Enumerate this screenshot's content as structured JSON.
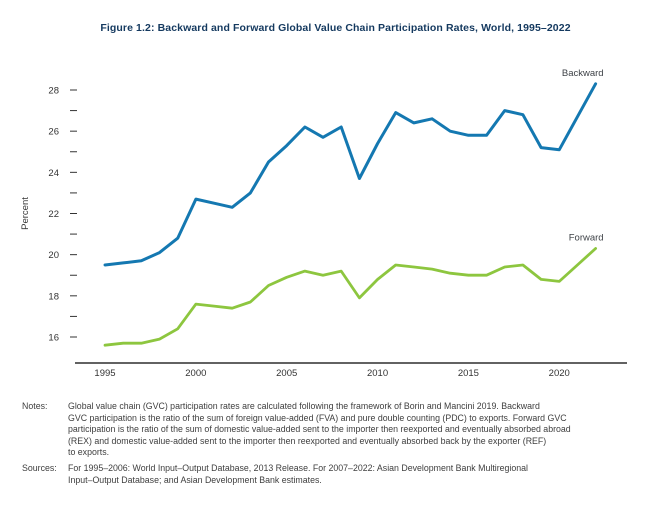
{
  "figure": {
    "title": "Figure 1.2: Backward and Forward Global Value Chain Participation Rates, World, 1995–2022"
  },
  "chart_data": {
    "type": "line",
    "x": [
      1995,
      1996,
      1997,
      1998,
      1999,
      2000,
      2001,
      2002,
      2003,
      2004,
      2005,
      2006,
      2007,
      2008,
      2009,
      2010,
      2011,
      2012,
      2013,
      2014,
      2015,
      2016,
      2017,
      2018,
      2019,
      2020,
      2021,
      2022
    ],
    "series": [
      {
        "name": "Backward",
        "color": "#1478b1",
        "values": [
          19.5,
          19.6,
          19.7,
          20.1,
          20.8,
          22.7,
          22.5,
          22.3,
          23.0,
          24.5,
          25.3,
          26.2,
          25.7,
          26.2,
          23.7,
          25.4,
          26.9,
          26.4,
          26.6,
          26.0,
          25.8,
          25.8,
          27.0,
          26.8,
          25.2,
          25.1,
          26.7,
          28.3
        ]
      },
      {
        "name": "Forward",
        "color": "#8dc63f",
        "values": [
          15.6,
          15.7,
          15.7,
          15.9,
          16.4,
          17.6,
          17.5,
          17.4,
          17.7,
          18.5,
          18.9,
          19.2,
          19.0,
          19.2,
          17.9,
          18.8,
          19.5,
          19.4,
          19.3,
          19.1,
          19.0,
          19.0,
          19.4,
          19.5,
          18.8,
          18.7,
          19.5,
          20.3
        ]
      }
    ],
    "title": "Figure 1.2: Backward and Forward Global Value Chain Participation Rates, World, 1995–2022",
    "xlabel": "",
    "ylabel": "Percent",
    "ylim": [
      15.2,
      28.6
    ],
    "yticks_labeled": [
      16,
      18,
      20,
      22,
      24,
      26,
      28
    ],
    "yticks_minor": [
      17,
      19,
      21,
      23,
      25,
      27
    ],
    "xticks": [
      1995,
      2000,
      2005,
      2010,
      2015,
      2020
    ],
    "grid": false,
    "legend_position": "line-end-labels",
    "axis_color": "#2e2e2e",
    "tick_label_color": "#333333"
  },
  "notes": {
    "label": "Notes:",
    "lines": [
      "Global value chain (GVC) participation rates are calculated following the framework of Borin and Mancini 2019. Backward",
      "GVC participation is the ratio of the sum of foreign value-added (FVA) and pure double counting (PDC) to exports. Forward GVC",
      "participation is the ratio of the sum of domestic value-added sent to the importer then reexported and eventually absorbed abroad",
      "(REX) and domestic value-added sent to the importer then reexported and eventually absorbed back by the exporter (REF)",
      "to exports."
    ]
  },
  "sources": {
    "label": "Sources:",
    "lines": [
      "For 1995–2006: World Input–Output Database, 2013 Release. For 2007–2022: Asian Development Bank Multiregional",
      "Input–Output Database; and Asian Development Bank estimates."
    ]
  }
}
